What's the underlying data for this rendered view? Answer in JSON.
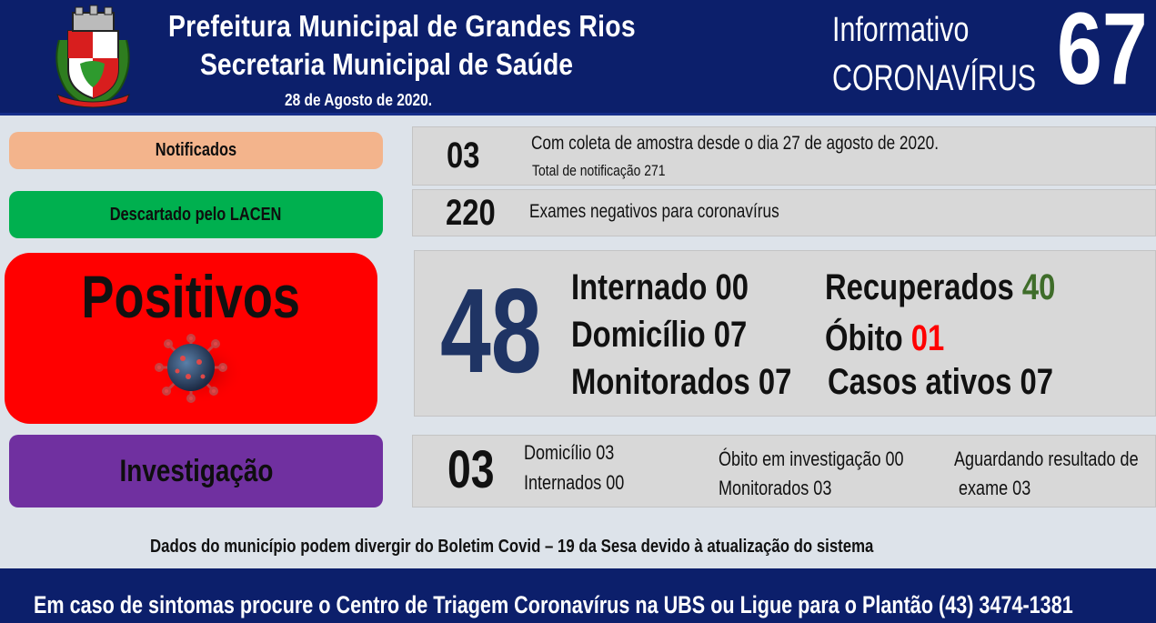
{
  "header": {
    "title_line1": "Prefeitura Municipal de Grandes Rios",
    "title_line2": "Secretaria Municipal de Saúde",
    "date": "28 de Agosto de 2020.",
    "info_line1": "Informativo",
    "info_line2": "CORONAVÍRUS",
    "number": "67",
    "crest_icon": "municipal-coat-of-arms-icon"
  },
  "categories": {
    "notified": {
      "label": "Notificados",
      "color": "#f3b48c"
    },
    "discarded": {
      "label": "Descartado pelo LACEN",
      "color": "#00b04f"
    },
    "positive": {
      "label": "Positivos",
      "color": "#ff0000",
      "icon": "coronavirus-icon"
    },
    "investigation": {
      "label": "Investigação",
      "color": "#7030a0"
    }
  },
  "notified": {
    "count": "03",
    "line1": "Com coleta de amostra desde o dia 27 de agosto de 2020.",
    "line2": "Total de notificação 271"
  },
  "discarded": {
    "count": "220",
    "text": "Exames negativos para coronavírus"
  },
  "positive": {
    "total": "48",
    "hospitalized": "Internado 00",
    "home": "Domicílio 07",
    "monitored": "Monitorados 07",
    "recovered_label": "Recuperados",
    "recovered_value": "40",
    "deaths_label": "Óbito",
    "deaths_value": "01",
    "active": "Casos ativos 07"
  },
  "investigation": {
    "count": "03",
    "home": "Domicílio 03",
    "hospitalized": "Internados 00",
    "death_investigation": "Óbito em investigação 00",
    "monitored": "Monitorados 03",
    "awaiting_line1": "Aguardando resultado de",
    "awaiting_line2": "exame 03"
  },
  "note": "Dados do município podem divergir do Boletim Covid – 19 da Sesa devido à atualização do sistema",
  "footer": "Em caso de sintomas procure o Centro de Triagem Coronavírus na UBS ou Ligue para o Plantão (43) 3474-1381",
  "colors": {
    "header_bg": "#0c1f6b",
    "page_bg": "#dde3ea",
    "total_number": "#1f3464",
    "recovered": "#3f6d2a",
    "deaths": "#ff0000"
  }
}
